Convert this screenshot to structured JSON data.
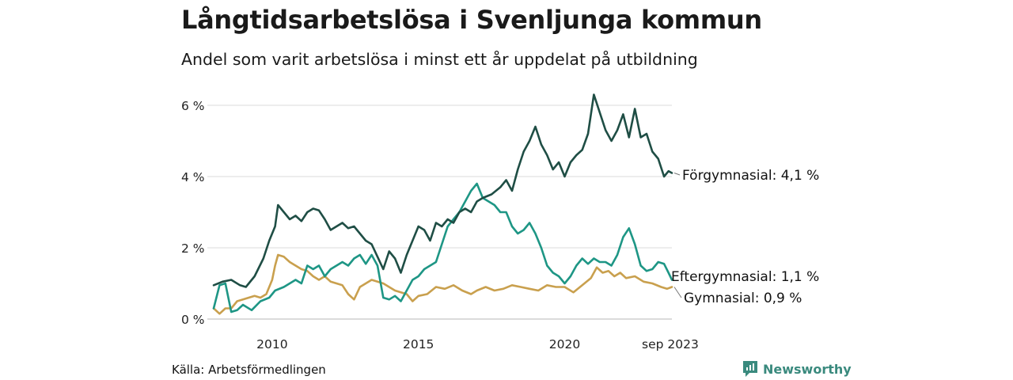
{
  "title": "Långtidsarbetslösa i Svenljunga kommun",
  "subtitle": "Andel som varit arbetslösa i minst ett år uppdelat på utbildning",
  "source": "Källa: Arbetsförmedlingen",
  "brand": {
    "name": "Newsworthy",
    "icon": "newsworthy-logo-icon",
    "color": "#3a8a7e"
  },
  "chart_data": {
    "type": "line",
    "title": "Långtidsarbetslösa i Svenljunga kommun",
    "subtitle": "Andel som varit arbetslösa i minst ett år uppdelat på utbildning",
    "xlabel": "",
    "ylabel": "",
    "x_start": "2008-01",
    "x_end": "2023-09",
    "xlim": [
      2008.0,
      2023.667
    ],
    "ylim": [
      0,
      6.5
    ],
    "grid": true,
    "y_ticks": [
      {
        "value": 0,
        "label": "0 %"
      },
      {
        "value": 2,
        "label": "2 %"
      },
      {
        "value": 4,
        "label": "4 %"
      },
      {
        "value": 6,
        "label": "6 %"
      }
    ],
    "x_ticks": [
      {
        "value": 2010.0,
        "label": "2010"
      },
      {
        "value": 2015.0,
        "label": "2015"
      },
      {
        "value": 2020.0,
        "label": "2020"
      },
      {
        "value": 2023.667,
        "label": "sep 2023"
      }
    ],
    "series": [
      {
        "name": "Förgymnasial",
        "end_label": "Förgymnasial: 4,1 %",
        "color": "#1f4e45",
        "points": [
          [
            2008.0,
            0.95
          ],
          [
            2008.3,
            1.05
          ],
          [
            2008.6,
            1.1
          ],
          [
            2008.9,
            0.95
          ],
          [
            2009.1,
            0.9
          ],
          [
            2009.4,
            1.2
          ],
          [
            2009.7,
            1.7
          ],
          [
            2009.9,
            2.2
          ],
          [
            2010.1,
            2.6
          ],
          [
            2010.2,
            3.2
          ],
          [
            2010.4,
            3.0
          ],
          [
            2010.6,
            2.8
          ],
          [
            2010.8,
            2.9
          ],
          [
            2011.0,
            2.75
          ],
          [
            2011.2,
            3.0
          ],
          [
            2011.4,
            3.1
          ],
          [
            2011.6,
            3.05
          ],
          [
            2011.8,
            2.8
          ],
          [
            2012.0,
            2.5
          ],
          [
            2012.2,
            2.6
          ],
          [
            2012.4,
            2.7
          ],
          [
            2012.6,
            2.55
          ],
          [
            2012.8,
            2.6
          ],
          [
            2013.0,
            2.4
          ],
          [
            2013.2,
            2.2
          ],
          [
            2013.4,
            2.1
          ],
          [
            2013.6,
            1.75
          ],
          [
            2013.8,
            1.4
          ],
          [
            2014.0,
            1.9
          ],
          [
            2014.2,
            1.7
          ],
          [
            2014.4,
            1.3
          ],
          [
            2014.6,
            1.8
          ],
          [
            2014.8,
            2.2
          ],
          [
            2015.0,
            2.6
          ],
          [
            2015.2,
            2.5
          ],
          [
            2015.4,
            2.2
          ],
          [
            2015.6,
            2.7
          ],
          [
            2015.8,
            2.6
          ],
          [
            2016.0,
            2.8
          ],
          [
            2016.2,
            2.7
          ],
          [
            2016.4,
            3.0
          ],
          [
            2016.6,
            3.1
          ],
          [
            2016.8,
            3.0
          ],
          [
            2017.0,
            3.3
          ],
          [
            2017.2,
            3.4
          ],
          [
            2017.5,
            3.5
          ],
          [
            2017.8,
            3.7
          ],
          [
            2018.0,
            3.9
          ],
          [
            2018.2,
            3.6
          ],
          [
            2018.4,
            4.2
          ],
          [
            2018.6,
            4.7
          ],
          [
            2018.8,
            5.0
          ],
          [
            2019.0,
            5.4
          ],
          [
            2019.2,
            4.9
          ],
          [
            2019.4,
            4.6
          ],
          [
            2019.6,
            4.2
          ],
          [
            2019.8,
            4.4
          ],
          [
            2020.0,
            4.0
          ],
          [
            2020.2,
            4.4
          ],
          [
            2020.4,
            4.6
          ],
          [
            2020.6,
            4.75
          ],
          [
            2020.8,
            5.2
          ],
          [
            2021.0,
            6.3
          ],
          [
            2021.2,
            5.8
          ],
          [
            2021.4,
            5.3
          ],
          [
            2021.6,
            5.0
          ],
          [
            2021.8,
            5.3
          ],
          [
            2022.0,
            5.75
          ],
          [
            2022.2,
            5.1
          ],
          [
            2022.4,
            5.9
          ],
          [
            2022.6,
            5.1
          ],
          [
            2022.8,
            5.2
          ],
          [
            2023.0,
            4.7
          ],
          [
            2023.2,
            4.5
          ],
          [
            2023.4,
            4.0
          ],
          [
            2023.55,
            4.15
          ],
          [
            2023.667,
            4.1
          ]
        ]
      },
      {
        "name": "Eftergymnasial",
        "end_label": "Eftergymnasial: 1,1 %",
        "color": "#1e9685",
        "points": [
          [
            2008.0,
            0.3
          ],
          [
            2008.2,
            0.95
          ],
          [
            2008.4,
            1.0
          ],
          [
            2008.6,
            0.2
          ],
          [
            2008.8,
            0.25
          ],
          [
            2009.0,
            0.4
          ],
          [
            2009.3,
            0.25
          ],
          [
            2009.6,
            0.5
          ],
          [
            2009.9,
            0.6
          ],
          [
            2010.1,
            0.8
          ],
          [
            2010.4,
            0.9
          ],
          [
            2010.6,
            1.0
          ],
          [
            2010.8,
            1.1
          ],
          [
            2011.0,
            1.0
          ],
          [
            2011.2,
            1.5
          ],
          [
            2011.4,
            1.4
          ],
          [
            2011.6,
            1.5
          ],
          [
            2011.8,
            1.2
          ],
          [
            2012.0,
            1.4
          ],
          [
            2012.2,
            1.5
          ],
          [
            2012.4,
            1.6
          ],
          [
            2012.6,
            1.5
          ],
          [
            2012.8,
            1.7
          ],
          [
            2013.0,
            1.8
          ],
          [
            2013.2,
            1.55
          ],
          [
            2013.4,
            1.8
          ],
          [
            2013.6,
            1.5
          ],
          [
            2013.8,
            0.6
          ],
          [
            2014.0,
            0.55
          ],
          [
            2014.2,
            0.65
          ],
          [
            2014.4,
            0.5
          ],
          [
            2014.6,
            0.8
          ],
          [
            2014.8,
            1.1
          ],
          [
            2015.0,
            1.2
          ],
          [
            2015.2,
            1.4
          ],
          [
            2015.4,
            1.5
          ],
          [
            2015.6,
            1.6
          ],
          [
            2015.8,
            2.1
          ],
          [
            2016.0,
            2.6
          ],
          [
            2016.2,
            2.8
          ],
          [
            2016.4,
            3.0
          ],
          [
            2016.6,
            3.3
          ],
          [
            2016.8,
            3.6
          ],
          [
            2017.0,
            3.8
          ],
          [
            2017.2,
            3.4
          ],
          [
            2017.4,
            3.3
          ],
          [
            2017.6,
            3.2
          ],
          [
            2017.8,
            3.0
          ],
          [
            2018.0,
            3.0
          ],
          [
            2018.2,
            2.6
          ],
          [
            2018.4,
            2.4
          ],
          [
            2018.6,
            2.5
          ],
          [
            2018.8,
            2.7
          ],
          [
            2019.0,
            2.4
          ],
          [
            2019.2,
            2.0
          ],
          [
            2019.4,
            1.5
          ],
          [
            2019.6,
            1.3
          ],
          [
            2019.8,
            1.2
          ],
          [
            2020.0,
            1.0
          ],
          [
            2020.2,
            1.2
          ],
          [
            2020.4,
            1.5
          ],
          [
            2020.6,
            1.7
          ],
          [
            2020.8,
            1.55
          ],
          [
            2021.0,
            1.7
          ],
          [
            2021.2,
            1.6
          ],
          [
            2021.4,
            1.6
          ],
          [
            2021.6,
            1.5
          ],
          [
            2021.8,
            1.8
          ],
          [
            2022.0,
            2.3
          ],
          [
            2022.2,
            2.55
          ],
          [
            2022.4,
            2.1
          ],
          [
            2022.6,
            1.5
          ],
          [
            2022.8,
            1.35
          ],
          [
            2023.0,
            1.4
          ],
          [
            2023.2,
            1.6
          ],
          [
            2023.4,
            1.55
          ],
          [
            2023.55,
            1.3
          ],
          [
            2023.667,
            1.1
          ]
        ]
      },
      {
        "name": "Gymnasial",
        "end_label": "Gymnasial: 0,9 %",
        "color": "#c9a04e",
        "points": [
          [
            2008.0,
            0.3
          ],
          [
            2008.2,
            0.15
          ],
          [
            2008.4,
            0.3
          ],
          [
            2008.6,
            0.3
          ],
          [
            2008.8,
            0.5
          ],
          [
            2009.0,
            0.55
          ],
          [
            2009.2,
            0.6
          ],
          [
            2009.4,
            0.65
          ],
          [
            2009.6,
            0.6
          ],
          [
            2009.8,
            0.7
          ],
          [
            2010.0,
            1.1
          ],
          [
            2010.1,
            1.5
          ],
          [
            2010.2,
            1.8
          ],
          [
            2010.4,
            1.75
          ],
          [
            2010.6,
            1.6
          ],
          [
            2010.8,
            1.5
          ],
          [
            2011.0,
            1.4
          ],
          [
            2011.2,
            1.35
          ],
          [
            2011.4,
            1.2
          ],
          [
            2011.6,
            1.1
          ],
          [
            2011.8,
            1.2
          ],
          [
            2012.0,
            1.05
          ],
          [
            2012.2,
            1.0
          ],
          [
            2012.4,
            0.95
          ],
          [
            2012.6,
            0.7
          ],
          [
            2012.8,
            0.55
          ],
          [
            2013.0,
            0.9
          ],
          [
            2013.2,
            1.0
          ],
          [
            2013.4,
            1.1
          ],
          [
            2013.6,
            1.05
          ],
          [
            2013.8,
            1.0
          ],
          [
            2014.0,
            0.9
          ],
          [
            2014.2,
            0.8
          ],
          [
            2014.4,
            0.75
          ],
          [
            2014.6,
            0.7
          ],
          [
            2014.8,
            0.5
          ],
          [
            2015.0,
            0.65
          ],
          [
            2015.3,
            0.7
          ],
          [
            2015.6,
            0.9
          ],
          [
            2015.9,
            0.85
          ],
          [
            2016.2,
            0.95
          ],
          [
            2016.5,
            0.8
          ],
          [
            2016.8,
            0.7
          ],
          [
            2017.0,
            0.8
          ],
          [
            2017.3,
            0.9
          ],
          [
            2017.6,
            0.8
          ],
          [
            2017.9,
            0.85
          ],
          [
            2018.2,
            0.95
          ],
          [
            2018.5,
            0.9
          ],
          [
            2018.8,
            0.85
          ],
          [
            2019.1,
            0.8
          ],
          [
            2019.4,
            0.95
          ],
          [
            2019.7,
            0.9
          ],
          [
            2020.0,
            0.9
          ],
          [
            2020.3,
            0.75
          ],
          [
            2020.6,
            0.95
          ],
          [
            2020.9,
            1.15
          ],
          [
            2021.1,
            1.45
          ],
          [
            2021.3,
            1.3
          ],
          [
            2021.5,
            1.35
          ],
          [
            2021.7,
            1.2
          ],
          [
            2021.9,
            1.3
          ],
          [
            2022.1,
            1.15
          ],
          [
            2022.4,
            1.2
          ],
          [
            2022.7,
            1.05
          ],
          [
            2023.0,
            1.0
          ],
          [
            2023.3,
            0.9
          ],
          [
            2023.5,
            0.85
          ],
          [
            2023.667,
            0.9
          ]
        ]
      }
    ]
  }
}
